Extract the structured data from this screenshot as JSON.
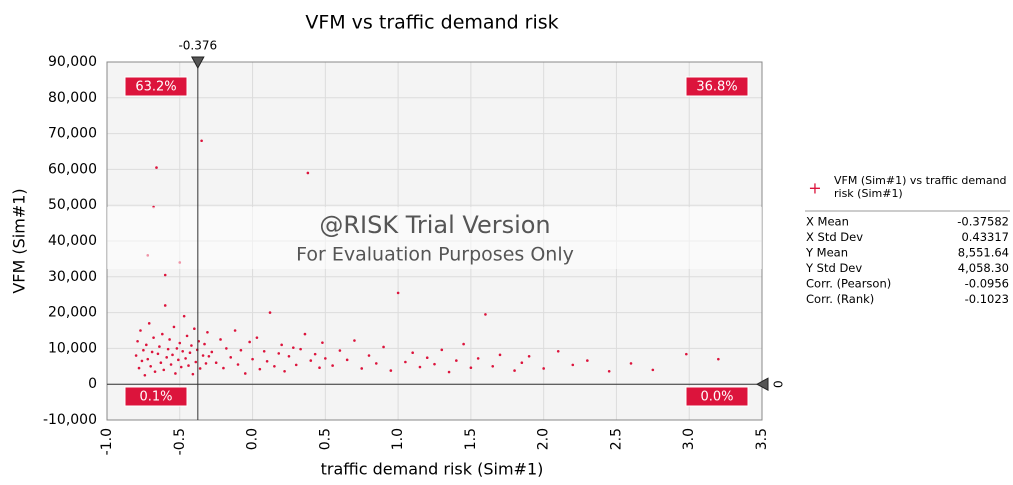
{
  "chart_data": {
    "type": "scatter",
    "title": "VFM vs traffic demand risk",
    "xlabel": "traffic demand risk (Sim#1)",
    "ylabel": "VFM (Sim#1)",
    "xlim": [
      -1,
      3.5
    ],
    "xticks": [
      {
        "value": -1,
        "label": "-1.0"
      },
      {
        "value": -0.5,
        "label": "-0.5"
      },
      {
        "value": 0,
        "label": "0.0"
      },
      0.5,
      {
        "value": 1,
        "label": "1.0"
      },
      1.5,
      {
        "value": 2,
        "label": "2.0"
      },
      2.5,
      {
        "value": 3,
        "label": "3.0"
      },
      3.5
    ],
    "ylim": [
      -10000,
      90000
    ],
    "yticks": [
      {
        "value": -10000,
        "label": "-10,000"
      },
      0,
      {
        "value": 10000,
        "label": "10,000"
      },
      {
        "value": 20000,
        "label": "20,000"
      },
      {
        "value": 30000,
        "label": "30,000"
      },
      {
        "value": 40000,
        "label": "40,000"
      },
      {
        "value": 50000,
        "label": "50,000"
      },
      {
        "value": 60000,
        "label": "60,000"
      },
      {
        "value": 70000,
        "label": "70,000"
      },
      {
        "value": 80000,
        "label": "80,000"
      },
      {
        "value": 90000,
        "label": "90,000"
      }
    ],
    "grid": true,
    "series": [
      {
        "name": "VFM (Sim#1) vs traffic demand risk (Sim#1)",
        "color": "#dc143c",
        "x": [
          -0.8,
          -0.79,
          -0.78,
          -0.77,
          -0.76,
          -0.75,
          -0.74,
          -0.73,
          -0.72,
          -0.71,
          -0.7,
          -0.69,
          -0.68,
          -0.67,
          -0.66,
          -0.65,
          -0.64,
          -0.63,
          -0.62,
          -0.61,
          -0.6,
          -0.59,
          -0.58,
          -0.57,
          -0.56,
          -0.55,
          -0.54,
          -0.53,
          -0.52,
          -0.51,
          -0.5,
          -0.49,
          -0.48,
          -0.47,
          -0.46,
          -0.45,
          -0.44,
          -0.43,
          -0.42,
          -0.41,
          -0.4,
          -0.39,
          -0.38,
          -0.37,
          -0.36,
          -0.35,
          -0.34,
          -0.33,
          -0.32,
          -0.31,
          -0.3,
          -0.68,
          -0.72,
          -0.6,
          -0.5,
          -0.28,
          -0.25,
          -0.22,
          -0.2,
          -0.18,
          -0.15,
          -0.12,
          -0.1,
          -0.08,
          -0.05,
          -0.02,
          0,
          0.03,
          0.05,
          0.08,
          0.1,
          0.12,
          0.15,
          0.18,
          0.2,
          0.22,
          0.25,
          0.28,
          0.3,
          0.33,
          0.36,
          0.38,
          0.4,
          0.43,
          0.46,
          0.48,
          0.5,
          0.55,
          0.6,
          0.65,
          0.7,
          0.75,
          0.8,
          0.85,
          0.9,
          0.95,
          1,
          1.05,
          1.1,
          1.15,
          1.2,
          1.25,
          1.3,
          1.35,
          1.4,
          1.45,
          1.5,
          1.55,
          1.6,
          1.65,
          1.7,
          1.8,
          1.85,
          1.9,
          2,
          2.1,
          2.2,
          2.3,
          2.45,
          2.6,
          2.75,
          2.98,
          3.2
        ],
        "values": [
          8000,
          12000,
          4500,
          15000,
          6500,
          9500,
          2500,
          11000,
          7000,
          17000,
          5000,
          9000,
          13000,
          3500,
          60500,
          8500,
          10500,
          6000,
          14000,
          4000,
          22000,
          7500,
          9800,
          12500,
          5500,
          8200,
          16000,
          3000,
          10000,
          6800,
          11500,
          4800,
          9200,
          19000,
          7200,
          13500,
          5200,
          8800,
          10800,
          2800,
          15500,
          6200,
          9600,
          12000,
          4400,
          68000,
          8000,
          11200,
          5800,
          14500,
          7800,
          49500,
          36000,
          30500,
          34000,
          9000,
          6000,
          12500,
          4500,
          10000,
          7500,
          15000,
          5500,
          9500,
          3000,
          11800,
          7000,
          13000,
          4200,
          9200,
          6400,
          20000,
          5000,
          8600,
          11000,
          3600,
          7800,
          10200,
          5400,
          9800,
          14000,
          59000,
          6600,
          8400,
          4600,
          11600,
          7200,
          5200,
          9400,
          6800,
          12200,
          4400,
          8000,
          5800,
          10400,
          3800,
          25500,
          6200,
          8800,
          4800,
          7400,
          5600,
          9600,
          3400,
          6600,
          11200,
          4600,
          7200,
          19500,
          5000,
          8200,
          3800,
          6000,
          7800,
          4400,
          9200,
          5400,
          6600,
          3600,
          5800,
          4000,
          8400,
          7000
        ]
      }
    ],
    "markers": {
      "x": {
        "value": -0.376,
        "label": "-0.376"
      },
      "y": {
        "value": 0,
        "label": "0"
      }
    },
    "quadrants": [
      {
        "position": "top-left",
        "value": 63.2,
        "label": "63.2%"
      },
      {
        "position": "top-right",
        "value": 36.8,
        "label": "36.8%"
      },
      {
        "position": "bottom-left",
        "value": 0.1,
        "label": "0.1%"
      },
      {
        "position": "bottom-right",
        "value": 0.0,
        "label": "0.0%"
      }
    ],
    "watermark": [
      "@RISK Trial Version",
      "For Evaluation Purposes Only"
    ],
    "stats": [
      {
        "label": "X Mean",
        "value": "-0.37582"
      },
      {
        "label": "X Std Dev",
        "value": "0.43317"
      },
      {
        "label": "Y Mean",
        "value": "8,551.64"
      },
      {
        "label": "Y Std Dev",
        "value": "4,058.30"
      },
      {
        "label": "Corr. (Pearson)",
        "value": "-0.0956"
      },
      {
        "label": "Corr. (Rank)",
        "value": "-0.1023"
      }
    ]
  }
}
